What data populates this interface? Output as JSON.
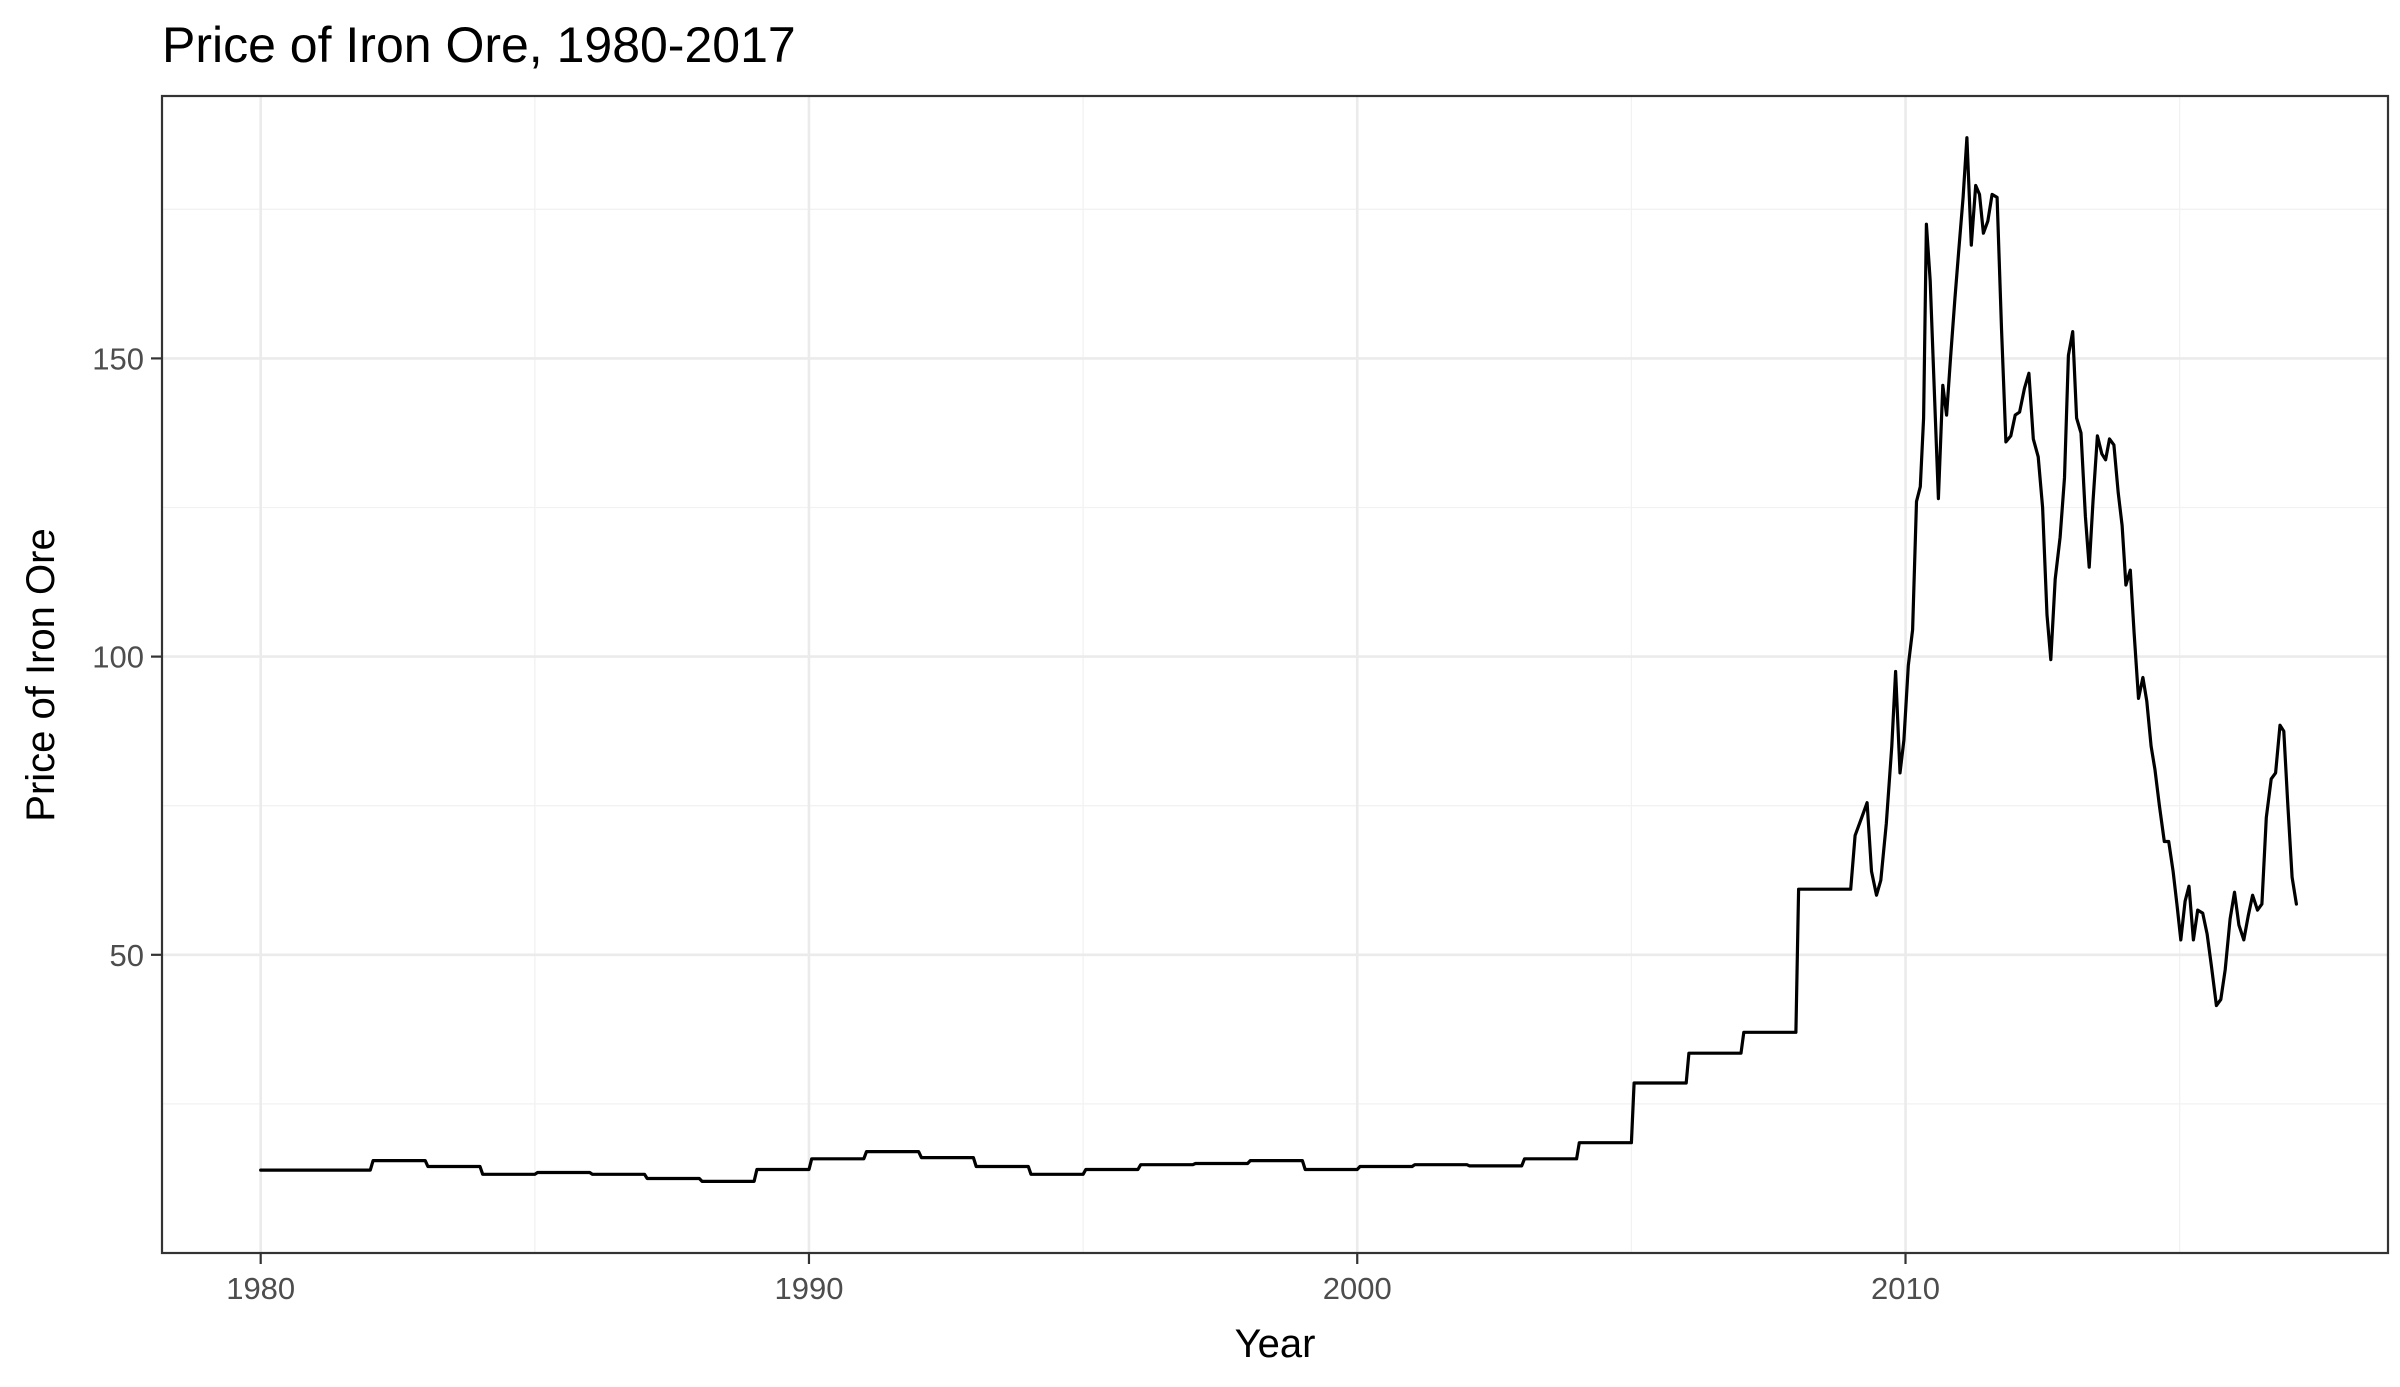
{
  "chart_data": {
    "type": "line",
    "title": "Price of Iron Ore, 1980-2017",
    "xlabel": "Year",
    "ylabel": "Price of Iron Ore",
    "xlim": [
      1978.2,
      2018.8
    ],
    "ylim": [
      0,
      194
    ],
    "x_ticks": [
      1980,
      1990,
      2000,
      2010
    ],
    "y_ticks": [
      50,
      100,
      150
    ],
    "x_tick_labels": [
      "1980",
      "1990",
      "2000",
      "2010"
    ],
    "y_tick_labels": [
      "50",
      "100",
      "150"
    ],
    "grid": true,
    "legend": "none",
    "series": [
      {
        "color": "#000000",
        "points": [
          [
            1980.0,
            13.9
          ],
          [
            1982.0,
            13.9
          ],
          [
            1982.05,
            15.5
          ],
          [
            1983.0,
            15.5
          ],
          [
            1983.05,
            14.5
          ],
          [
            1984.0,
            14.5
          ],
          [
            1984.05,
            13.2
          ],
          [
            1985.0,
            13.2
          ],
          [
            1985.05,
            13.5
          ],
          [
            1986.0,
            13.5
          ],
          [
            1986.05,
            13.2
          ],
          [
            1987.0,
            13.2
          ],
          [
            1987.05,
            12.5
          ],
          [
            1988.0,
            12.5
          ],
          [
            1988.05,
            12.0
          ],
          [
            1989.0,
            12.0
          ],
          [
            1989.05,
            14.0
          ],
          [
            1990.0,
            14.0
          ],
          [
            1990.05,
            15.8
          ],
          [
            1991.0,
            15.8
          ],
          [
            1991.05,
            17.0
          ],
          [
            1992.0,
            17.0
          ],
          [
            1992.05,
            16.0
          ],
          [
            1993.0,
            16.0
          ],
          [
            1993.05,
            14.5
          ],
          [
            1994.0,
            14.5
          ],
          [
            1994.05,
            13.2
          ],
          [
            1995.0,
            13.2
          ],
          [
            1995.05,
            14.0
          ],
          [
            1996.0,
            14.0
          ],
          [
            1996.05,
            14.8
          ],
          [
            1997.0,
            14.8
          ],
          [
            1997.05,
            15.0
          ],
          [
            1998.0,
            15.0
          ],
          [
            1998.05,
            15.5
          ],
          [
            1999.0,
            15.5
          ],
          [
            1999.05,
            14.0
          ],
          [
            2000.0,
            14.0
          ],
          [
            2000.05,
            14.5
          ],
          [
            2001.0,
            14.5
          ],
          [
            2001.05,
            14.8
          ],
          [
            2002.0,
            14.8
          ],
          [
            2002.05,
            14.6
          ],
          [
            2003.0,
            14.6
          ],
          [
            2003.05,
            15.8
          ],
          [
            2004.0,
            15.8
          ],
          [
            2004.05,
            18.5
          ],
          [
            2005.0,
            18.5
          ],
          [
            2005.05,
            28.5
          ],
          [
            2006.0,
            28.5
          ],
          [
            2006.05,
            33.5
          ],
          [
            2007.0,
            33.5
          ],
          [
            2007.05,
            37.0
          ],
          [
            2008.0,
            37.0
          ],
          [
            2008.05,
            61.0
          ],
          [
            2009.0,
            61.0
          ],
          [
            2009.08,
            70.0
          ],
          [
            2009.2,
            73.0
          ],
          [
            2009.3,
            75.5
          ],
          [
            2009.38,
            64.0
          ],
          [
            2009.47,
            60.0
          ],
          [
            2009.55,
            62.5
          ],
          [
            2009.65,
            72.0
          ],
          [
            2009.75,
            85.0
          ],
          [
            2009.82,
            97.5
          ],
          [
            2009.9,
            80.5
          ],
          [
            2009.97,
            86.0
          ],
          [
            2010.05,
            98.5
          ],
          [
            2010.13,
            104.5
          ],
          [
            2010.2,
            126.0
          ],
          [
            2010.27,
            128.5
          ],
          [
            2010.33,
            140.0
          ],
          [
            2010.38,
            172.5
          ],
          [
            2010.45,
            163.0
          ],
          [
            2010.52,
            146.0
          ],
          [
            2010.6,
            126.5
          ],
          [
            2010.68,
            145.5
          ],
          [
            2010.75,
            140.5
          ],
          [
            2010.82,
            150.0
          ],
          [
            2010.9,
            160.0
          ],
          [
            2010.97,
            168.0
          ],
          [
            2011.05,
            177.0
          ],
          [
            2011.12,
            187.0
          ],
          [
            2011.2,
            169.0
          ],
          [
            2011.28,
            179.0
          ],
          [
            2011.35,
            177.5
          ],
          [
            2011.42,
            171.0
          ],
          [
            2011.5,
            173.0
          ],
          [
            2011.58,
            177.5
          ],
          [
            2011.67,
            177.0
          ],
          [
            2011.75,
            155.0
          ],
          [
            2011.83,
            136.0
          ],
          [
            2011.92,
            137.0
          ],
          [
            2012.0,
            140.5
          ],
          [
            2012.08,
            141.0
          ],
          [
            2012.17,
            145.0
          ],
          [
            2012.25,
            147.5
          ],
          [
            2012.33,
            136.5
          ],
          [
            2012.42,
            133.5
          ],
          [
            2012.5,
            125.0
          ],
          [
            2012.58,
            107.0
          ],
          [
            2012.65,
            99.5
          ],
          [
            2012.73,
            113.0
          ],
          [
            2012.82,
            120.0
          ],
          [
            2012.9,
            130.0
          ],
          [
            2012.97,
            150.5
          ],
          [
            2013.05,
            154.5
          ],
          [
            2013.12,
            140.0
          ],
          [
            2013.2,
            137.5
          ],
          [
            2013.28,
            123.5
          ],
          [
            2013.35,
            115.0
          ],
          [
            2013.42,
            126.0
          ],
          [
            2013.5,
            137.0
          ],
          [
            2013.58,
            134.0
          ],
          [
            2013.65,
            133.0
          ],
          [
            2013.72,
            136.5
          ],
          [
            2013.8,
            135.5
          ],
          [
            2013.88,
            127.5
          ],
          [
            2013.95,
            122.0
          ],
          [
            2014.02,
            112.0
          ],
          [
            2014.1,
            114.5
          ],
          [
            2014.17,
            104.0
          ],
          [
            2014.25,
            93.0
          ],
          [
            2014.33,
            96.5
          ],
          [
            2014.4,
            92.5
          ],
          [
            2014.48,
            85.0
          ],
          [
            2014.55,
            81.0
          ],
          [
            2014.63,
            75.0
          ],
          [
            2014.72,
            69.0
          ],
          [
            2014.8,
            69.0
          ],
          [
            2014.88,
            64.0
          ],
          [
            2014.95,
            58.5
          ],
          [
            2015.02,
            52.5
          ],
          [
            2015.1,
            59.0
          ],
          [
            2015.17,
            61.5
          ],
          [
            2015.25,
            52.5
          ],
          [
            2015.33,
            57.5
          ],
          [
            2015.42,
            57.0
          ],
          [
            2015.5,
            53.5
          ],
          [
            2015.58,
            48.0
          ],
          [
            2015.67,
            41.5
          ],
          [
            2015.75,
            42.5
          ],
          [
            2015.83,
            47.5
          ],
          [
            2015.92,
            56.0
          ],
          [
            2016.0,
            60.5
          ],
          [
            2016.08,
            55.0
          ],
          [
            2016.17,
            52.5
          ],
          [
            2016.25,
            56.5
          ],
          [
            2016.33,
            60.0
          ],
          [
            2016.42,
            57.5
          ],
          [
            2016.5,
            58.5
          ],
          [
            2016.58,
            73.0
          ],
          [
            2016.67,
            79.5
          ],
          [
            2016.75,
            80.5
          ],
          [
            2016.83,
            88.5
          ],
          [
            2016.9,
            87.5
          ],
          [
            2016.97,
            75.5
          ],
          [
            2017.05,
            63.0
          ],
          [
            2017.13,
            58.5
          ]
        ]
      }
    ]
  }
}
